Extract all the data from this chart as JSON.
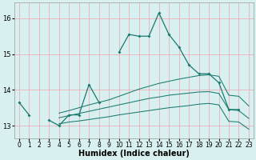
{
  "x": [
    0,
    1,
    2,
    3,
    4,
    5,
    6,
    7,
    8,
    9,
    10,
    11,
    12,
    13,
    14,
    15,
    16,
    17,
    18,
    19,
    20,
    21,
    22,
    23
  ],
  "line_spike": [
    13.65,
    13.3,
    null,
    13.15,
    13.0,
    13.3,
    13.3,
    14.15,
    13.65,
    null,
    15.05,
    15.55,
    15.5,
    15.5,
    16.15,
    15.55,
    15.2,
    14.7,
    14.45,
    14.45,
    14.2,
    13.45,
    13.45,
    null
  ],
  "line_upper": [
    null,
    null,
    null,
    null,
    13.35,
    13.42,
    13.5,
    13.58,
    13.65,
    13.72,
    13.82,
    13.92,
    14.02,
    14.1,
    14.18,
    14.24,
    14.3,
    14.35,
    14.4,
    14.42,
    14.38,
    13.85,
    13.82,
    13.55
  ],
  "line_mid": [
    null,
    null,
    null,
    null,
    13.22,
    13.28,
    13.34,
    13.4,
    13.46,
    13.52,
    13.58,
    13.64,
    13.7,
    13.76,
    13.8,
    13.85,
    13.88,
    13.91,
    13.94,
    13.95,
    13.9,
    13.45,
    13.42,
    13.2
  ],
  "line_low": [
    null,
    null,
    null,
    null,
    13.05,
    13.1,
    13.13,
    13.17,
    13.21,
    13.25,
    13.3,
    13.34,
    13.38,
    13.42,
    13.46,
    13.5,
    13.53,
    13.56,
    13.6,
    13.62,
    13.58,
    13.12,
    13.1,
    12.9
  ],
  "line_color": "#1a7a6e",
  "bg_color": "#d8f0f0",
  "grid_color": "#f0a0b0",
  "xlabel": "Humidex (Indice chaleur)",
  "yticks": [
    13,
    14,
    15,
    16
  ],
  "xtick_labels": [
    "0",
    "1",
    "2",
    "3",
    "4",
    "5",
    "6",
    "7",
    "8",
    "9",
    "10",
    "11",
    "12",
    "13",
    "14",
    "15",
    "16",
    "17",
    "18",
    "19",
    "20",
    "21",
    "22",
    "23"
  ],
  "xlim": [
    -0.5,
    23.5
  ],
  "ylim": [
    12.65,
    16.45
  ]
}
